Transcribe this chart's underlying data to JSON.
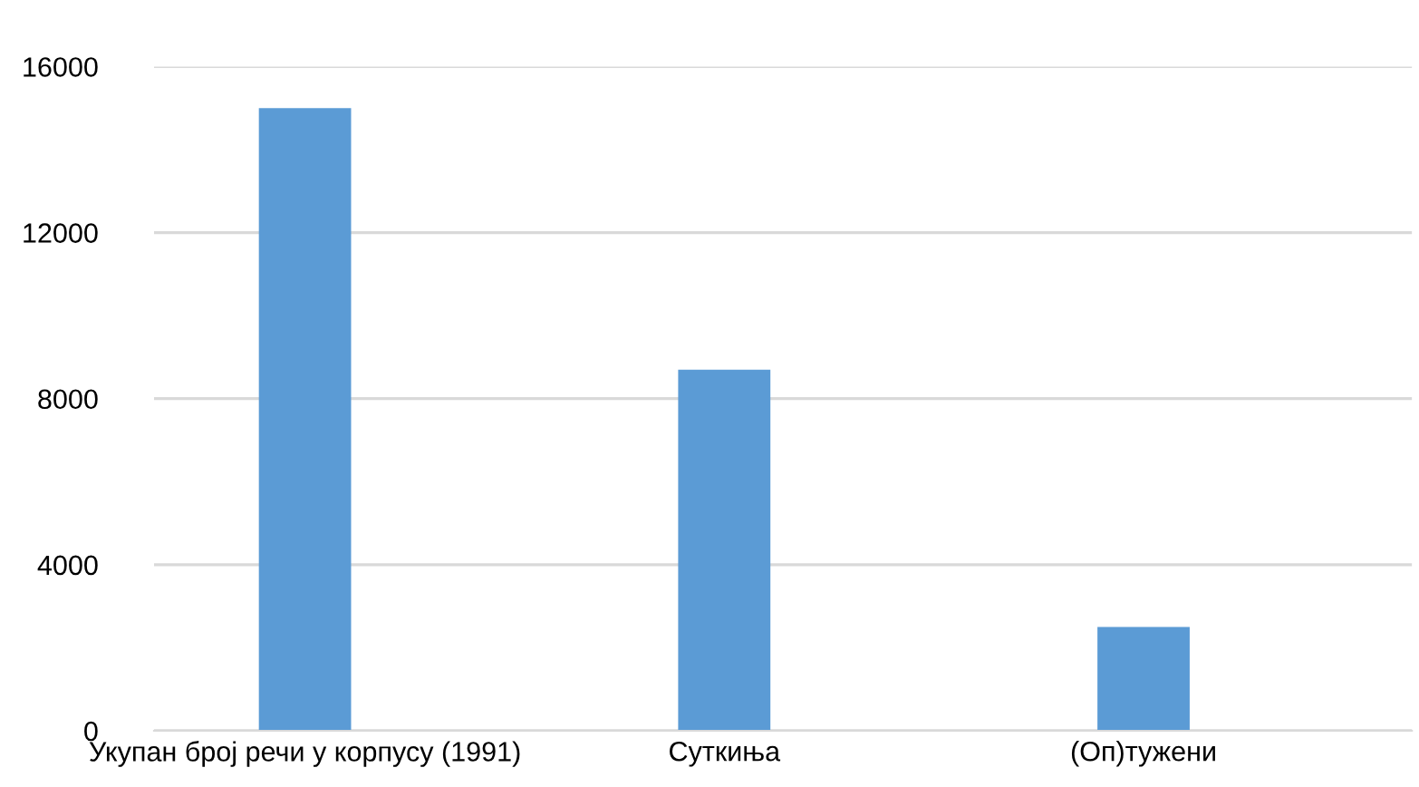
{
  "chart_data": {
    "type": "bar",
    "categories": [
      "Укупан број речи у корпусу (1991)",
      "Суткиња",
      "(Оп)тужени"
    ],
    "values": [
      15000,
      8700,
      2500
    ],
    "color": "#5b9bd5",
    "ylim": [
      0,
      16000
    ],
    "yticks": [
      0,
      4000,
      8000,
      12000,
      16000
    ],
    "grid": "y"
  }
}
